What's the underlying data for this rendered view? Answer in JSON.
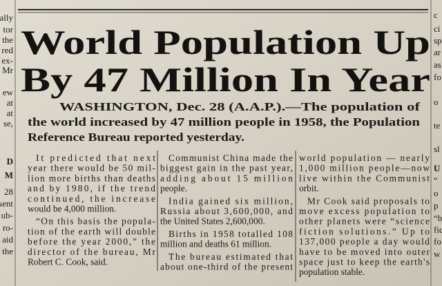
{
  "header": {
    "headline": [
      "World Population Up",
      "By 47 Million In Year"
    ]
  },
  "lead": [
    "WASHINGTON, Dec. 28 (A.A.P.).—The population of",
    "the world increased by 47 million people in 1958, the Population",
    "Reference Bureau reported yesterday."
  ],
  "columns": [
    {
      "paragraphs": [
        [
          "It predicted that next",
          "year there would be 50 mil-",
          "lion more births than deaths",
          "and by 1980, if the trend",
          "continued, the increase",
          "would be 4,000 million."
        ],
        [
          "“On this basis the popula-",
          "tion of the earth will double",
          "before the year 2000,” the",
          "director of the bureau, Mr",
          "Robert C. Cook, said."
        ]
      ]
    },
    {
      "paragraphs": [
        [
          "Communist China made the",
          "biggest gain in the past year,",
          "adding about 15 million",
          "people."
        ],
        [
          "India gained six million,",
          "Russia about 3,600,000, and",
          "the United States 2,600,000."
        ],
        [
          "Births in 1958 totalled 108",
          "million and deaths 61 million."
        ],
        [
          "The bureau estimated that",
          "about one-third of the present"
        ]
      ]
    },
    {
      "paragraphs": [
        [
          "world population — nearly",
          "1,000 million people—now",
          "live within the Communist",
          "orbit."
        ],
        [
          "Mr Cook said proposals to",
          "move excess population to",
          "other planets were “science",
          "fiction solutions.” Up to",
          "137,000 people a day would",
          "have to be moved into outer",
          "space just to keep the earth's",
          "population stable."
        ]
      ]
    }
  ],
  "left_fragments": [
    "ally",
    "tor",
    "the",
    "red",
    "ex-",
    "Mr",
    "ew",
    "at",
    "at",
    "se,",
    "D",
    "M",
    "28",
    "esent",
    "ub-",
    "ro-",
    "aid",
    "the"
  ],
  "right_fragments": [
    "c",
    "ci",
    "sp",
    "ar",
    "as",
    "fo",
    "o",
    "te",
    "sl",
    "U",
    "“",
    "o",
    "p",
    "“b",
    "fic",
    "fo",
    "w"
  ]
}
